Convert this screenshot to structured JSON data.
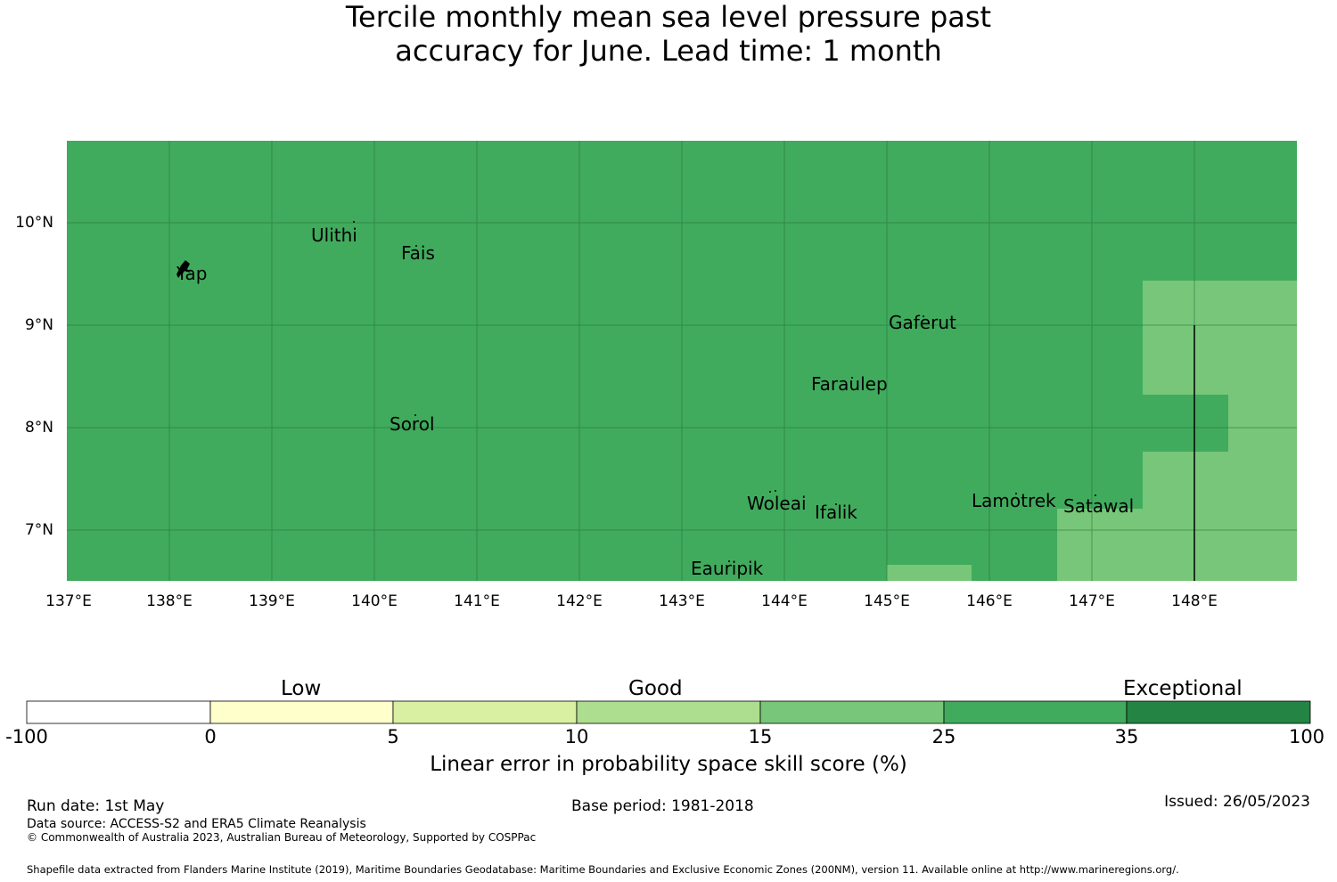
{
  "title": {
    "line1": "Tercile monthly mean sea level pressure past",
    "line2": "accuracy for June. Lead time: 1 month"
  },
  "map": {
    "background_color": "#41ab5d",
    "lighter_color": "#78c679",
    "lat_labels": [
      "10°N",
      "9°N",
      "8°N",
      "7°N"
    ],
    "lon_labels": [
      "137°E",
      "138°E",
      "139°E",
      "140°E",
      "141°E",
      "142°E",
      "143°E",
      "144°E",
      "145°E",
      "146°E",
      "147°E",
      "148°E"
    ],
    "places": {
      "yap": "Yap",
      "ulithi": "Ulithi",
      "fais": "Fais",
      "gaferut": "Gaferut",
      "faraulep": "Faraulep",
      "sorol": "Sorol",
      "woleai": "Woleai",
      "ifalik": "Ifalik",
      "lamotrek": "Lamotrek",
      "satawal": "Satawal",
      "eauripik": "Eauripik"
    }
  },
  "colorbar": {
    "category_low": "Low",
    "category_good": "Good",
    "category_exceptional": "Exceptional",
    "ticks": [
      "-100",
      "0",
      "5",
      "10",
      "15",
      "25",
      "35",
      "100"
    ],
    "colors": [
      "#ffffff",
      "#ffffcc",
      "#d9f0a3",
      "#addd8e",
      "#78c679",
      "#41ab5d",
      "#238443"
    ],
    "title": "Linear error in probability space skill score (%)"
  },
  "footer": {
    "run_date": "Run date: 1st May",
    "base_period": "Base period: 1981-2018",
    "issued": "Issued: 26/05/2023",
    "data_source": "Data source: ACCESS-S2 and ERA5 Climate Reanalysis",
    "copyright": "© Commonwealth of Australia 2023, Australian Bureau of Meteorology, Supported by COSPPac",
    "shapefile": "Shapefile data extracted from Flanders Marine Institute (2019), Maritime Boundaries Geodatabase: Maritime Boundaries and Exclusive Economic Zones (200NM), version 11. Available online at http://www.marineregions.org/."
  }
}
